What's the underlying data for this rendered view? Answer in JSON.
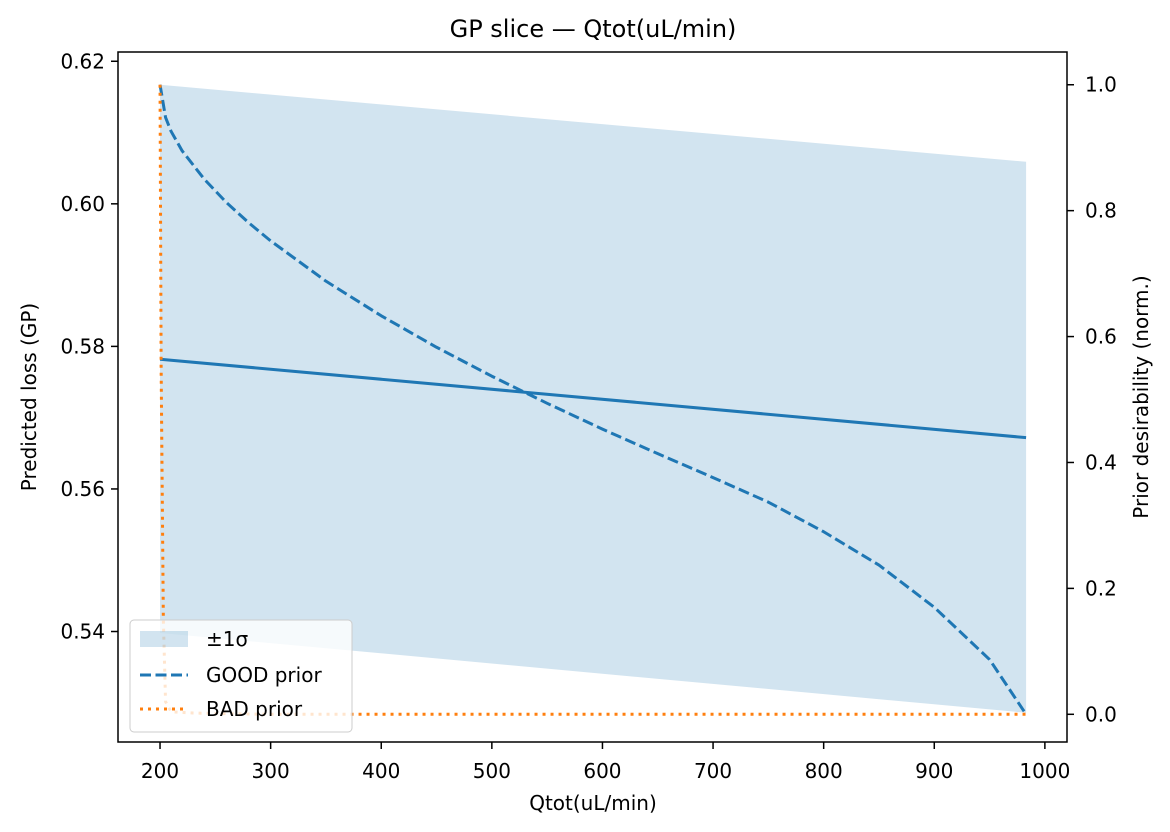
{
  "chart_data": {
    "type": "line",
    "title": "GP slice — Qtot(uL/min)",
    "xlabel": "Qtot(uL/min)",
    "ylabel": "Predicted loss (GP)",
    "y2label": "Prior desirability (norm.)",
    "xlim": [
      162,
      1020
    ],
    "ylim": [
      0.5245,
      0.6213
    ],
    "y2lim": [
      -0.044,
      1.052
    ],
    "xticks": [
      200,
      300,
      400,
      500,
      600,
      700,
      800,
      900,
      1000
    ],
    "yticks": [
      0.54,
      0.56,
      0.58,
      0.6,
      0.62
    ],
    "ytick_labels": [
      "0.54",
      "0.56",
      "0.58",
      "0.60",
      "0.62"
    ],
    "y2ticks": [
      0.0,
      0.2,
      0.4,
      0.6,
      0.8,
      1.0
    ],
    "y2tick_labels": [
      "0.0",
      "0.2",
      "0.4",
      "0.6",
      "0.8",
      "1.0"
    ],
    "grid": false,
    "legend_placement": "lower-left",
    "colors": {
      "gp_mean": "#1f77b4",
      "band": "#1f77b4",
      "good_prior": "#1f77b4",
      "bad_prior": "#ff7f0e"
    },
    "series": [
      {
        "kind": "mean",
        "axis": "left",
        "x": [
          200,
          983
        ],
        "y": [
          0.5782,
          0.5672
        ]
      },
      {
        "name": "±1σ",
        "kind": "band",
        "axis": "left",
        "x": [
          200,
          983
        ],
        "upper": [
          0.6167,
          0.6059
        ],
        "lower": [
          0.5398,
          0.5286
        ]
      },
      {
        "name": "GOOD prior",
        "kind": "curve",
        "axis": "right",
        "x": [
          200,
          205,
          210,
          220,
          240,
          260,
          280,
          300,
          350,
          400,
          450,
          500,
          550,
          600,
          650,
          700,
          750,
          800,
          850,
          900,
          950,
          983
        ],
        "y": [
          1.0,
          0.948,
          0.926,
          0.895,
          0.85,
          0.813,
          0.781,
          0.752,
          0.688,
          0.633,
          0.583,
          0.537,
          0.494,
          0.453,
          0.414,
          0.376,
          0.337,
          0.29,
          0.237,
          0.17,
          0.087,
          0.0
        ]
      },
      {
        "name": "BAD prior",
        "kind": "curve",
        "axis": "right",
        "x": [
          200,
          201,
          203,
          205,
          210,
          230,
          260,
          300,
          400,
          600,
          800,
          983
        ],
        "y": [
          1.0,
          0.55,
          0.15,
          0.02,
          0.004,
          0.002,
          0.001,
          0.0,
          0.0,
          0.0,
          0.0,
          0.0
        ]
      }
    ]
  }
}
